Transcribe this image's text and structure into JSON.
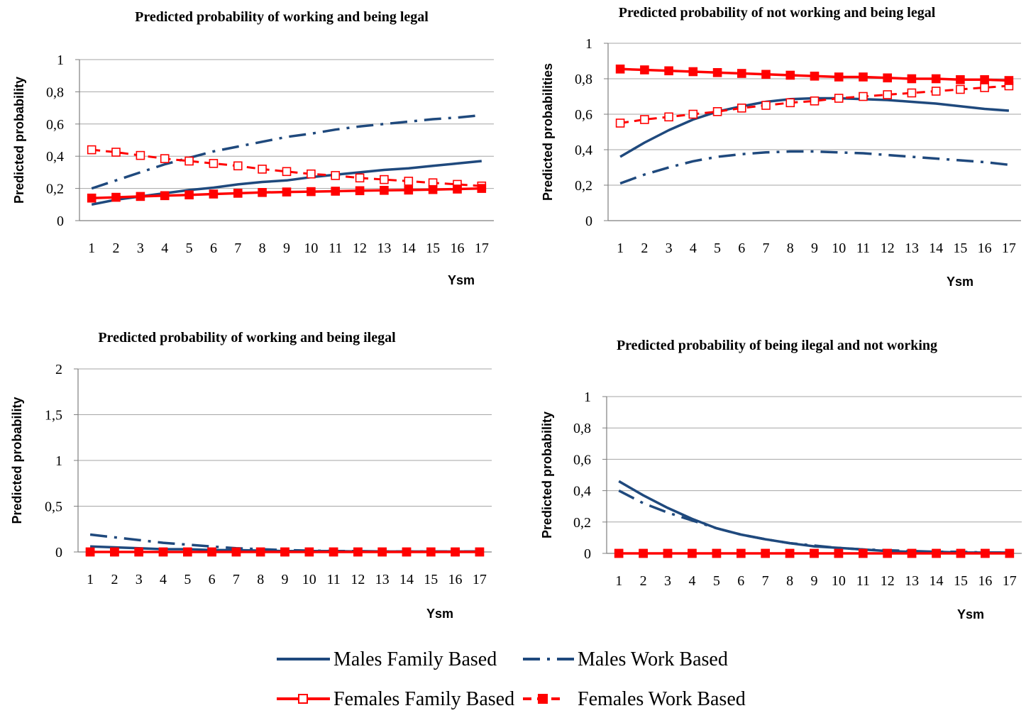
{
  "colors": {
    "males": "#1F497D",
    "females": "#FF0000",
    "grid": "#A6A6A6",
    "axis": "#7F7F7F"
  },
  "legend": {
    "males_family": "Males Family Based",
    "males_work": "Males Work Based",
    "females_family": "Females Family Based",
    "females_work": "Females Work Based"
  },
  "chart_data": [
    {
      "type": "line",
      "title": "Predicted probability of working and being legal",
      "xlabel": "Ysm",
      "ylabel": "Predicted probability",
      "x": [
        1,
        2,
        3,
        4,
        5,
        6,
        7,
        8,
        9,
        10,
        11,
        12,
        13,
        14,
        15,
        16,
        17
      ],
      "ylim": [
        0,
        1
      ],
      "yticks": [
        "0",
        "0,2",
        "0,4",
        "0,6",
        "0,8",
        "1"
      ],
      "grid": true,
      "series": [
        {
          "name": "Males Family Based",
          "values": [
            0.1,
            0.13,
            0.15,
            0.17,
            0.19,
            0.205,
            0.225,
            0.24,
            0.25,
            0.27,
            0.285,
            0.3,
            0.315,
            0.325,
            0.34,
            0.355,
            0.37
          ]
        },
        {
          "name": "Males Work Based",
          "values": [
            0.2,
            0.25,
            0.3,
            0.35,
            0.39,
            0.43,
            0.46,
            0.49,
            0.52,
            0.54,
            0.565,
            0.585,
            0.6,
            0.615,
            0.63,
            0.64,
            0.655
          ]
        },
        {
          "name": "Females Family Based",
          "values": [
            0.44,
            0.425,
            0.405,
            0.385,
            0.37,
            0.355,
            0.34,
            0.32,
            0.305,
            0.29,
            0.28,
            0.265,
            0.255,
            0.245,
            0.235,
            0.225,
            0.215
          ]
        },
        {
          "name": "Females Work Based",
          "values": [
            0.14,
            0.145,
            0.15,
            0.155,
            0.16,
            0.165,
            0.17,
            0.175,
            0.178,
            0.18,
            0.183,
            0.186,
            0.188,
            0.19,
            0.193,
            0.196,
            0.2
          ]
        }
      ]
    },
    {
      "type": "line",
      "title": "Predicted probability of not working and being legal",
      "xlabel": "Ysm",
      "ylabel": "Predicted probabilities",
      "x": [
        1,
        2,
        3,
        4,
        5,
        6,
        7,
        8,
        9,
        10,
        11,
        12,
        13,
        14,
        15,
        16,
        17
      ],
      "ylim": [
        0,
        1
      ],
      "yticks": [
        "0",
        "0,2",
        "0,4",
        "0,6",
        "0,8",
        "1"
      ],
      "grid": true,
      "series": [
        {
          "name": "Males Family Based",
          "values": [
            0.36,
            0.44,
            0.51,
            0.57,
            0.615,
            0.645,
            0.67,
            0.685,
            0.69,
            0.69,
            0.685,
            0.68,
            0.67,
            0.66,
            0.645,
            0.63,
            0.62
          ]
        },
        {
          "name": "Males Work Based",
          "values": [
            0.21,
            0.26,
            0.3,
            0.335,
            0.36,
            0.375,
            0.385,
            0.39,
            0.39,
            0.385,
            0.38,
            0.37,
            0.36,
            0.35,
            0.34,
            0.33,
            0.315
          ]
        },
        {
          "name": "Females Family Based",
          "values": [
            0.55,
            0.57,
            0.585,
            0.6,
            0.615,
            0.635,
            0.65,
            0.665,
            0.675,
            0.69,
            0.7,
            0.71,
            0.72,
            0.73,
            0.74,
            0.75,
            0.76
          ]
        },
        {
          "name": "Females Work Based",
          "values": [
            0.855,
            0.85,
            0.845,
            0.84,
            0.835,
            0.83,
            0.825,
            0.82,
            0.815,
            0.81,
            0.81,
            0.805,
            0.8,
            0.8,
            0.795,
            0.795,
            0.79
          ]
        }
      ]
    },
    {
      "type": "line",
      "title": "Predicted probability of working and being ilegal",
      "xlabel": "Ysm",
      "ylabel": "Predicted probability",
      "x": [
        1,
        2,
        3,
        4,
        5,
        6,
        7,
        8,
        9,
        10,
        11,
        12,
        13,
        14,
        15,
        16,
        17
      ],
      "ylim": [
        0,
        2
      ],
      "yticks": [
        "0",
        "0,5",
        "1",
        "1,5",
        "2"
      ],
      "grid": true,
      "series": [
        {
          "name": "Males Family Based",
          "values": [
            0.06,
            0.05,
            0.04,
            0.03,
            0.03,
            0.02,
            0.02,
            0.015,
            0.01,
            0.01,
            0.01,
            0.005,
            0.005,
            0.005,
            0.005,
            0.005,
            0.005
          ]
        },
        {
          "name": "Males Work Based",
          "values": [
            0.19,
            0.16,
            0.13,
            0.1,
            0.08,
            0.06,
            0.04,
            0.03,
            0.02,
            0.015,
            0.01,
            0.01,
            0.005,
            0.005,
            0.005,
            0.005,
            0.005
          ]
        },
        {
          "name": "Females Family Based",
          "values": [
            0,
            0,
            0,
            0,
            0,
            0,
            0,
            0,
            0,
            0,
            0,
            0,
            0,
            0,
            0,
            0,
            0
          ]
        },
        {
          "name": "Females Work Based",
          "values": [
            0,
            0,
            0,
            0,
            0,
            0,
            0,
            0,
            0,
            0,
            0,
            0,
            0,
            0,
            0,
            0,
            0
          ]
        }
      ]
    },
    {
      "type": "line",
      "title": "Predicted probability of being ilegal and not working",
      "xlabel": "Ysm",
      "ylabel": "Predicted probability",
      "x": [
        1,
        2,
        3,
        4,
        5,
        6,
        7,
        8,
        9,
        10,
        11,
        12,
        13,
        14,
        15,
        16,
        17
      ],
      "ylim": [
        0,
        1
      ],
      "yticks": [
        "0",
        "0,2",
        "0,4",
        "0,6",
        "0,8",
        "1"
      ],
      "grid": true,
      "series": [
        {
          "name": "Males Family Based",
          "values": [
            0.46,
            0.37,
            0.29,
            0.22,
            0.16,
            0.12,
            0.09,
            0.065,
            0.045,
            0.035,
            0.025,
            0.015,
            0.01,
            0.01,
            0.005,
            0.005,
            0.005
          ]
        },
        {
          "name": "Males Work Based",
          "values": [
            0.4,
            0.32,
            0.26,
            0.21,
            0.16,
            0.12,
            0.09,
            0.065,
            0.05,
            0.035,
            0.025,
            0.02,
            0.015,
            0.01,
            0.01,
            0.005,
            0.005
          ]
        },
        {
          "name": "Females Family Based",
          "values": [
            0,
            0,
            0,
            0,
            0,
            0,
            0,
            0,
            0,
            0,
            0,
            0,
            0,
            0,
            0,
            0,
            0
          ]
        },
        {
          "name": "Females Work Based",
          "values": [
            0,
            0,
            0,
            0,
            0,
            0,
            0,
            0,
            0,
            0,
            0,
            0,
            0,
            0,
            0,
            0,
            0
          ]
        }
      ]
    }
  ]
}
